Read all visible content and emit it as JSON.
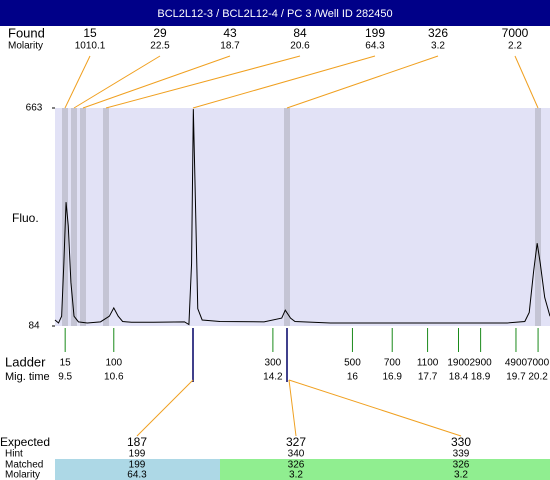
{
  "header": {
    "title": "BCL2L12-3 / BCL2L12-4 / PC 3 /Well ID 282450"
  },
  "found": {
    "label": "Found",
    "molarity_label": "Molarity",
    "sizes": [
      15,
      29,
      43,
      84,
      199,
      326,
      7000
    ],
    "molarity": [
      1010.1,
      22.5,
      18.7,
      20.6,
      64.3,
      3.2,
      2.2
    ]
  },
  "chart_data": {
    "type": "line",
    "ylabel": "Fluo.",
    "ylim": [
      84,
      663
    ],
    "yticks": [
      84,
      663
    ],
    "xlim": [
      9.27,
      20.47
    ],
    "color": "#000000",
    "x": [
      9.27,
      9.35,
      9.42,
      9.47,
      9.52,
      9.57,
      9.63,
      9.7,
      9.8,
      10.0,
      10.3,
      10.5,
      10.6,
      10.7,
      10.8,
      11.0,
      11.5,
      12.2,
      12.3,
      12.36,
      12.4,
      12.45,
      12.5,
      12.6,
      13.0,
      14.0,
      14.4,
      14.48,
      14.6,
      14.7,
      15.5,
      17.0,
      19.5,
      19.9,
      20.0,
      20.1,
      20.18,
      20.25,
      20.35,
      20.47
    ],
    "values": [
      100,
      92,
      110,
      250,
      413,
      350,
      200,
      110,
      95,
      92,
      95,
      110,
      132,
      110,
      96,
      94,
      94,
      95,
      88,
      250,
      660,
      400,
      130,
      100,
      96,
      95,
      105,
      126,
      105,
      96,
      92,
      92,
      92,
      96,
      120,
      230,
      304,
      250,
      160,
      110
    ]
  },
  "ladder": {
    "label": "Ladder",
    "time_label": "Mig. time",
    "sizes": [
      15,
      100,
      300,
      500,
      700,
      1100,
      1900,
      2900,
      4900,
      7000
    ],
    "times": [
      9.5,
      10.6,
      14.2,
      16,
      16.9,
      17.7,
      18.4,
      18.9,
      19.7,
      20.2
    ]
  },
  "expected": {
    "labels": [
      "Expected",
      "Hint",
      "Matched",
      "Molarity"
    ],
    "columns": [
      [
        187,
        199,
        199,
        64.3
      ],
      [
        327,
        340,
        326,
        3.2
      ],
      [
        330,
        339,
        326,
        3.2
      ]
    ]
  }
}
